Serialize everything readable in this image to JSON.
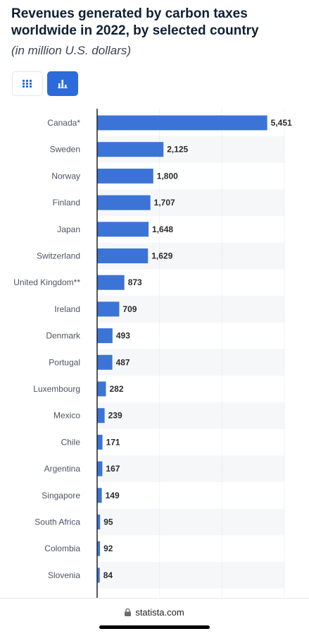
{
  "header": {
    "title": "Revenues generated by carbon taxes worldwide in 2022, by selected country",
    "subtitle": "(in million U.S. dollars)"
  },
  "toolbar": {
    "table_icon": "grid-icon",
    "chart_icon": "bar-chart-icon",
    "active": "chart"
  },
  "colors": {
    "bar": "#3b74d6",
    "accent": "#2c6bdc",
    "stripe": "#f6f7f9"
  },
  "chart_data": {
    "type": "bar",
    "orientation": "horizontal",
    "categories": [
      "Canada*",
      "Sweden",
      "Norway",
      "Finland",
      "Japan",
      "Switzerland",
      "United Kingdom**",
      "Ireland",
      "Denmark",
      "Portugal",
      "Luxembourg",
      "Mexico",
      "Chile",
      "Argentina",
      "Singapore",
      "South Africa",
      "Colombia",
      "Slovenia"
    ],
    "values": [
      5451,
      2125,
      1800,
      1707,
      1648,
      1629,
      873,
      709,
      493,
      487,
      282,
      239,
      171,
      167,
      149,
      95,
      92,
      84
    ],
    "value_labels": [
      "5,451",
      "2,125",
      "1,800",
      "1,707",
      "1,648",
      "1,629",
      "873",
      "709",
      "493",
      "487",
      "282",
      "239",
      "171",
      "167",
      "149",
      "95",
      "92",
      "84"
    ],
    "xlim": [
      0,
      6000
    ],
    "grid": true,
    "xlabel": "",
    "ylabel": ""
  },
  "footer": {
    "source": "statista.com",
    "lock_icon": "lock-icon"
  }
}
